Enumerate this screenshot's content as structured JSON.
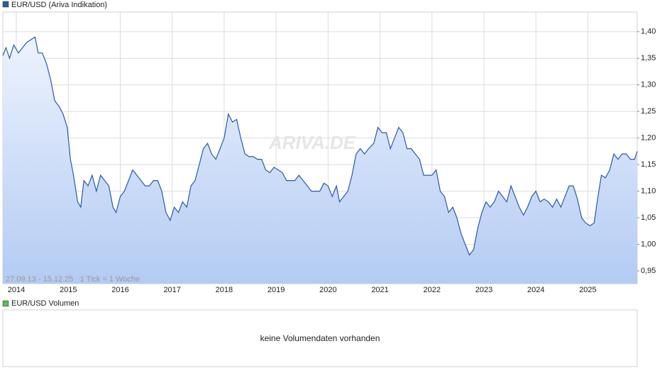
{
  "chart_data": {
    "type": "line",
    "title": "EUR/USD (Ariva Indikation)",
    "watermark": "ARIVA.DE",
    "info": "27.09.13 - 15.12.25   1 Tick = 1 Woche",
    "color": "#2a5aa8",
    "grid": true,
    "xlim": [
      2013.74,
      2025.95
    ],
    "xticks": [
      2014,
      2015,
      2016,
      2017,
      2018,
      2019,
      2020,
      2021,
      2022,
      2023,
      2024,
      2025
    ],
    "ylim": [
      0.926,
      1.437
    ],
    "yticks": [
      {
        "value": 0.95,
        "label": "0,95"
      },
      {
        "value": 1.0,
        "label": "1,00"
      },
      {
        "value": 1.05,
        "label": "1,05"
      },
      {
        "value": 1.1,
        "label": "1,10"
      },
      {
        "value": 1.15,
        "label": "1,15"
      },
      {
        "value": 1.2,
        "label": "1,20"
      },
      {
        "value": 1.25,
        "label": "1,25"
      },
      {
        "value": 1.3,
        "label": "1,30"
      },
      {
        "value": 1.35,
        "label": "1,35"
      },
      {
        "value": 1.4,
        "label": "1,40"
      }
    ],
    "x": [
      2013.74,
      2013.8,
      2013.87,
      2013.95,
      2014.04,
      2014.12,
      2014.2,
      2014.28,
      2014.36,
      2014.42,
      2014.5,
      2014.58,
      2014.66,
      2014.74,
      2014.82,
      2014.9,
      2014.98,
      2015.04,
      2015.1,
      2015.18,
      2015.24,
      2015.3,
      2015.38,
      2015.46,
      2015.54,
      2015.62,
      2015.7,
      2015.78,
      2015.86,
      2015.92,
      2016.0,
      2016.08,
      2016.16,
      2016.24,
      2016.32,
      2016.4,
      2016.48,
      2016.56,
      2016.64,
      2016.72,
      2016.8,
      2016.88,
      2016.96,
      2017.04,
      2017.12,
      2017.2,
      2017.28,
      2017.36,
      2017.44,
      2017.52,
      2017.6,
      2017.68,
      2017.76,
      2017.84,
      2017.92,
      2018.0,
      2018.08,
      2018.16,
      2018.24,
      2018.32,
      2018.4,
      2018.48,
      2018.56,
      2018.64,
      2018.72,
      2018.8,
      2018.88,
      2018.96,
      2019.04,
      2019.12,
      2019.2,
      2019.28,
      2019.36,
      2019.44,
      2019.52,
      2019.6,
      2019.68,
      2019.76,
      2019.84,
      2019.92,
      2020.0,
      2020.08,
      2020.16,
      2020.22,
      2020.3,
      2020.38,
      2020.46,
      2020.54,
      2020.62,
      2020.7,
      2020.78,
      2020.88,
      2020.96,
      2021.04,
      2021.12,
      2021.2,
      2021.28,
      2021.36,
      2021.44,
      2021.52,
      2021.6,
      2021.68,
      2021.76,
      2021.84,
      2021.92,
      2022.0,
      2022.08,
      2022.16,
      2022.24,
      2022.32,
      2022.4,
      2022.48,
      2022.56,
      2022.64,
      2022.72,
      2022.8,
      2022.88,
      2022.96,
      2023.04,
      2023.12,
      2023.2,
      2023.28,
      2023.36,
      2023.44,
      2023.52,
      2023.6,
      2023.68,
      2023.76,
      2023.84,
      2023.92,
      2024.0,
      2024.08,
      2024.16,
      2024.24,
      2024.32,
      2024.4,
      2024.48,
      2024.56,
      2024.64,
      2024.72,
      2024.8,
      2024.88,
      2024.96,
      2025.04,
      2025.12,
      2025.18,
      2025.26,
      2025.34,
      2025.42,
      2025.5,
      2025.58,
      2025.66,
      2025.74,
      2025.82,
      2025.9,
      2025.95
    ],
    "series": [
      {
        "name": "EUR/USD",
        "color": "#2a5aa8",
        "values": [
          1.355,
          1.37,
          1.35,
          1.375,
          1.36,
          1.37,
          1.38,
          1.385,
          1.39,
          1.36,
          1.36,
          1.34,
          1.31,
          1.27,
          1.26,
          1.245,
          1.22,
          1.16,
          1.13,
          1.08,
          1.07,
          1.12,
          1.11,
          1.13,
          1.1,
          1.13,
          1.12,
          1.11,
          1.07,
          1.06,
          1.09,
          1.1,
          1.12,
          1.14,
          1.13,
          1.12,
          1.11,
          1.11,
          1.12,
          1.12,
          1.1,
          1.06,
          1.045,
          1.07,
          1.06,
          1.08,
          1.07,
          1.11,
          1.12,
          1.15,
          1.18,
          1.19,
          1.17,
          1.16,
          1.18,
          1.2,
          1.245,
          1.23,
          1.235,
          1.2,
          1.17,
          1.165,
          1.165,
          1.16,
          1.16,
          1.14,
          1.135,
          1.145,
          1.14,
          1.135,
          1.12,
          1.12,
          1.12,
          1.13,
          1.12,
          1.11,
          1.1,
          1.1,
          1.1,
          1.115,
          1.11,
          1.09,
          1.11,
          1.08,
          1.09,
          1.1,
          1.13,
          1.17,
          1.18,
          1.17,
          1.18,
          1.19,
          1.22,
          1.21,
          1.21,
          1.18,
          1.2,
          1.22,
          1.21,
          1.18,
          1.18,
          1.17,
          1.16,
          1.13,
          1.13,
          1.13,
          1.14,
          1.1,
          1.09,
          1.06,
          1.07,
          1.05,
          1.02,
          1.0,
          0.98,
          0.99,
          1.03,
          1.06,
          1.08,
          1.07,
          1.08,
          1.1,
          1.09,
          1.08,
          1.11,
          1.09,
          1.07,
          1.055,
          1.07,
          1.09,
          1.1,
          1.08,
          1.085,
          1.08,
          1.07,
          1.085,
          1.07,
          1.09,
          1.11,
          1.11,
          1.085,
          1.05,
          1.04,
          1.035,
          1.04,
          1.08,
          1.13,
          1.125,
          1.14,
          1.17,
          1.16,
          1.17,
          1.17,
          1.16,
          1.16,
          1.175
        ]
      }
    ]
  },
  "volume": {
    "title": "EUR/USD Volumen",
    "color": "#5cb85c",
    "message": "keine Volumendaten vorhanden"
  }
}
